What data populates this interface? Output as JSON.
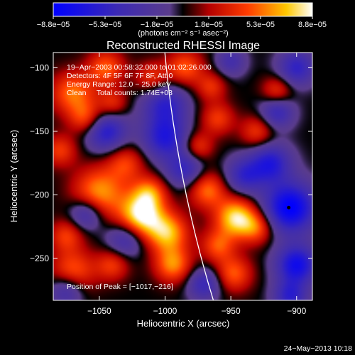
{
  "chart_data": {
    "type": "heatmap",
    "title": "Reconstructed RHESSI Image",
    "xlabel": "Heliocentric X (arcsec)",
    "ylabel": "Heliocentric Y (arcsec)",
    "xlim": [
      -1085,
      -888
    ],
    "ylim": [
      -283,
      -88
    ],
    "x_ticks": [
      -1050,
      -1000,
      -950,
      -900
    ],
    "x_tick_labels": [
      "−1050",
      "−1000",
      "−950",
      "−900"
    ],
    "y_ticks": [
      -100,
      -150,
      -200,
      -250
    ],
    "y_tick_labels": [
      "−100",
      "−150",
      "−200",
      "−250"
    ],
    "colorbar": {
      "range": [
        -8.8e-05,
        8.8e-05
      ],
      "tick_labels": [
        "−8.8e−05",
        "−5.3e−05",
        "−1.8e−05",
        "1.8e−05",
        "5.3e−05",
        "8.8e−05"
      ],
      "unit_label": "(photons cm⁻² s⁻¹ asec⁻²)"
    },
    "info_lines": [
      "19−Apr−2003 00:58:32.000 to 01:02:26.000",
      "Detectors: 4F 5F 6F 7F 8F, Att 0",
      "Energy Range: 12.0 − 25.0 keV",
      "Clean     Total counts: 1.74E+03"
    ],
    "peak_label": "Position of Peak = [−1017,−216]",
    "peak": [
      -1017,
      -216
    ],
    "minimum_marker": [
      -906,
      -210
    ],
    "blobs": [
      {
        "x": -1018,
        "y": -216,
        "r": 12,
        "v": 1.0
      },
      {
        "x": -1012,
        "y": -198,
        "r": 9,
        "v": 0.55
      },
      {
        "x": -998,
        "y": -230,
        "r": 11,
        "v": 0.75
      },
      {
        "x": -994,
        "y": -255,
        "r": 10,
        "v": 0.65
      },
      {
        "x": -1050,
        "y": -198,
        "r": 14,
        "v": 0.7
      },
      {
        "x": -1030,
        "y": -175,
        "r": 10,
        "v": 0.45
      },
      {
        "x": -1070,
        "y": -120,
        "r": 12,
        "v": 0.6
      },
      {
        "x": -1060,
        "y": -140,
        "r": 9,
        "v": 0.5
      },
      {
        "x": -1045,
        "y": -100,
        "r": 10,
        "v": 0.55
      },
      {
        "x": -1010,
        "y": -108,
        "r": 9,
        "v": 0.45
      },
      {
        "x": -985,
        "y": -100,
        "r": 10,
        "v": 0.55
      },
      {
        "x": -965,
        "y": -115,
        "r": 8,
        "v": 0.4
      },
      {
        "x": -960,
        "y": -140,
        "r": 9,
        "v": 0.45
      },
      {
        "x": -975,
        "y": -162,
        "r": 8,
        "v": 0.45
      },
      {
        "x": -968,
        "y": -196,
        "r": 10,
        "v": 0.6
      },
      {
        "x": -946,
        "y": -218,
        "r": 11,
        "v": 0.9
      },
      {
        "x": -930,
        "y": -226,
        "r": 9,
        "v": 0.5
      },
      {
        "x": -960,
        "y": -240,
        "r": 9,
        "v": 0.5
      },
      {
        "x": -948,
        "y": -262,
        "r": 10,
        "v": 0.55
      },
      {
        "x": -1070,
        "y": -260,
        "r": 12,
        "v": 0.55
      },
      {
        "x": -1075,
        "y": -232,
        "r": 9,
        "v": 0.45
      },
      {
        "x": -1040,
        "y": -255,
        "r": 9,
        "v": 0.45
      },
      {
        "x": -1080,
        "y": -165,
        "r": 9,
        "v": 0.45
      },
      {
        "x": -1040,
        "y": -128,
        "r": 8,
        "v": 0.4
      },
      {
        "x": -930,
        "y": -150,
        "r": 9,
        "v": 0.45
      },
      {
        "x": -915,
        "y": -118,
        "r": 8,
        "v": 0.45
      },
      {
        "x": -1045,
        "y": -150,
        "r": 11,
        "v": -0.7
      },
      {
        "x": -1000,
        "y": -128,
        "r": 12,
        "v": -0.6
      },
      {
        "x": -1000,
        "y": -155,
        "r": 12,
        "v": -0.7
      },
      {
        "x": -985,
        "y": -180,
        "r": 10,
        "v": -0.55
      },
      {
        "x": -1030,
        "y": -235,
        "r": 10,
        "v": -0.5
      },
      {
        "x": -1060,
        "y": -215,
        "r": 9,
        "v": -0.55
      },
      {
        "x": -1075,
        "y": -275,
        "r": 9,
        "v": -0.5
      },
      {
        "x": -940,
        "y": -185,
        "r": 10,
        "v": -0.55
      },
      {
        "x": -970,
        "y": -270,
        "r": 9,
        "v": -0.55
      },
      {
        "x": -905,
        "y": -210,
        "r": 14,
        "v": -1.0
      },
      {
        "x": -900,
        "y": -255,
        "r": 11,
        "v": -0.85
      },
      {
        "x": -920,
        "y": -175,
        "r": 11,
        "v": -0.7
      },
      {
        "x": -915,
        "y": -135,
        "r": 9,
        "v": -0.55
      },
      {
        "x": -900,
        "y": -100,
        "r": 10,
        "v": -0.6
      },
      {
        "x": -950,
        "y": -95,
        "r": 8,
        "v": -0.4
      },
      {
        "x": -905,
        "y": -280,
        "r": 9,
        "v": -0.6
      }
    ]
  },
  "timestamp": "24−May−2013 10:18"
}
